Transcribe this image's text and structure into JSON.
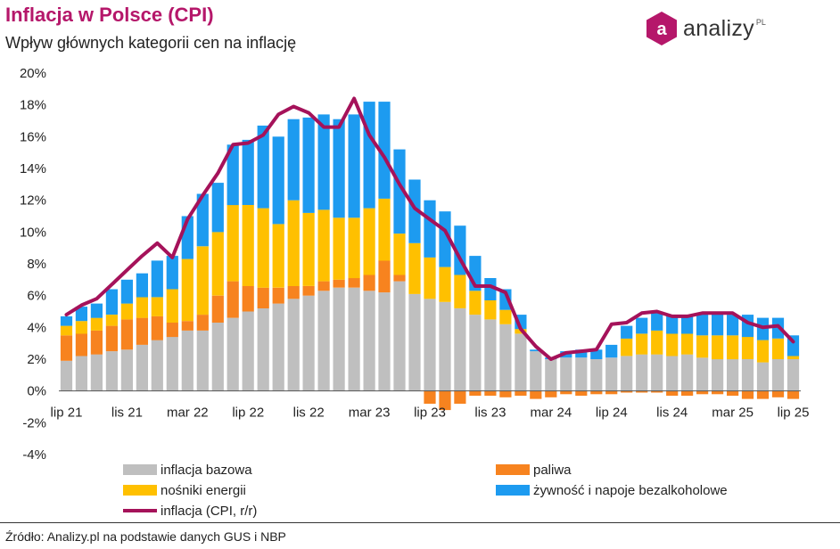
{
  "header": {
    "title": "Inflacja w Polsce (CPI)",
    "subtitle": "Wpływ głównych kategorii cen na inflację"
  },
  "logo": {
    "brand": "analizy",
    "suffix": "PL",
    "badge_letter": "a",
    "color": "#b5176a"
  },
  "source": "Źródło: Analizy.pl na podstawie danych GUS i NBP",
  "colors": {
    "bazowa": "#bfbfbf",
    "paliwa": "#f7831f",
    "energia": "#ffc000",
    "zywnosc": "#1d9bf0",
    "cpi": "#a5125a"
  },
  "chart_data": {
    "type": "bar",
    "stacked": true,
    "ylim": [
      -4,
      20
    ],
    "yticks": [
      "-4%",
      "-2%",
      "0%",
      "2%",
      "4%",
      "6%",
      "8%",
      "10%",
      "12%",
      "14%",
      "16%",
      "18%",
      "20%"
    ],
    "xtick_labels": [
      {
        "index": 0,
        "label": "lip 21"
      },
      {
        "index": 4,
        "label": "lis 21"
      },
      {
        "index": 8,
        "label": "mar 22"
      },
      {
        "index": 12,
        "label": "lip 22"
      },
      {
        "index": 16,
        "label": "lis 22"
      },
      {
        "index": 20,
        "label": "mar 23"
      },
      {
        "index": 24,
        "label": "lip 23"
      },
      {
        "index": 28,
        "label": "lis 23"
      },
      {
        "index": 32,
        "label": "mar 24"
      },
      {
        "index": 36,
        "label": "lip 24"
      },
      {
        "index": 40,
        "label": "lis 24"
      },
      {
        "index": 44,
        "label": "mar 25"
      },
      {
        "index": 48,
        "label": "lip 25"
      }
    ],
    "categories": [
      "lip 21",
      "sie 21",
      "wrz 21",
      "paź 21",
      "lis 21",
      "gru 21",
      "sty 22",
      "lut 22",
      "mar 22",
      "kwi 22",
      "maj 22",
      "cze 22",
      "lip 22",
      "sie 22",
      "wrz 22",
      "paź 22",
      "lis 22",
      "gru 22",
      "sty 23",
      "lut 23",
      "mar 23",
      "kwi 23",
      "maj 23",
      "cze 23",
      "lip 23",
      "sie 23",
      "wrz 23",
      "paź 23",
      "lis 23",
      "gru 23",
      "sty 24",
      "lut 24",
      "mar 24",
      "kwi 24",
      "maj 24",
      "cze 24",
      "lip 24",
      "sie 24",
      "wrz 24",
      "paź 24",
      "lis 24",
      "gru 24",
      "sty 25",
      "lut 25",
      "mar 25",
      "kwi 25",
      "maj 25",
      "cze 25",
      "lip 25"
    ],
    "series": [
      {
        "name": "inflacja bazowa",
        "key": "bazowa",
        "values": [
          1.9,
          2.2,
          2.3,
          2.5,
          2.6,
          2.9,
          3.2,
          3.4,
          3.8,
          3.8,
          4.3,
          4.6,
          5.0,
          5.2,
          5.5,
          5.8,
          6.0,
          6.3,
          6.5,
          6.5,
          6.3,
          6.2,
          6.9,
          6.1,
          5.8,
          5.6,
          5.2,
          4.8,
          4.5,
          4.2,
          3.6,
          2.5,
          2.0,
          2.1,
          2.1,
          2.0,
          2.1,
          2.2,
          2.3,
          2.3,
          2.2,
          2.3,
          2.1,
          2.0,
          2.0,
          2.0,
          1.8,
          2.0,
          2.0
        ]
      },
      {
        "name": "paliwa",
        "key": "paliwa",
        "values": [
          1.6,
          1.4,
          1.5,
          1.6,
          1.9,
          1.7,
          1.5,
          0.9,
          0.6,
          1.0,
          1.7,
          2.3,
          1.6,
          1.3,
          1.0,
          0.8,
          0.6,
          0.6,
          0.5,
          0.6,
          1.0,
          2.0,
          0.4,
          0.0,
          -0.8,
          -1.2,
          -0.8,
          -0.3,
          -0.3,
          -0.4,
          -0.3,
          -0.5,
          -0.4,
          -0.2,
          -0.3,
          -0.2,
          -0.2,
          -0.1,
          -0.1,
          -0.1,
          -0.3,
          -0.3,
          -0.2,
          -0.2,
          -0.3,
          -0.5,
          -0.5,
          -0.4,
          -0.5
        ]
      },
      {
        "name": "nośniki energii",
        "key": "energia",
        "values": [
          0.6,
          0.8,
          0.8,
          0.7,
          1.0,
          1.3,
          1.2,
          2.1,
          3.9,
          4.3,
          4.0,
          4.8,
          5.1,
          5.0,
          4.0,
          5.4,
          4.6,
          4.5,
          3.9,
          3.8,
          4.2,
          3.9,
          2.6,
          3.2,
          2.6,
          2.2,
          2.1,
          1.5,
          1.2,
          0.9,
          0.3,
          0.0,
          0.0,
          0.0,
          0.0,
          0.0,
          0.0,
          1.1,
          1.3,
          1.5,
          1.4,
          1.3,
          1.4,
          1.5,
          1.5,
          1.4,
          1.4,
          1.3,
          0.2
        ]
      },
      {
        "name": "żywność i napoje bezalkoholowe",
        "key": "zywnosc",
        "values": [
          0.6,
          0.9,
          0.9,
          1.6,
          1.5,
          1.5,
          2.3,
          2.1,
          2.7,
          3.3,
          3.1,
          3.8,
          4.1,
          5.2,
          5.5,
          5.1,
          6.0,
          6.0,
          6.2,
          6.5,
          6.7,
          6.1,
          5.3,
          4.0,
          3.6,
          3.5,
          3.1,
          2.2,
          1.4,
          1.3,
          0.9,
          0.1,
          0.1,
          0.4,
          0.5,
          0.6,
          0.8,
          0.8,
          1.0,
          1.2,
          1.2,
          1.2,
          1.4,
          1.4,
          1.3,
          1.4,
          1.4,
          1.3,
          1.3
        ]
      },
      {
        "name": "inflacja (CPI, r/r)",
        "key": "cpi",
        "type": "line",
        "values": [
          4.8,
          5.4,
          5.8,
          6.7,
          7.6,
          8.5,
          9.3,
          8.4,
          10.8,
          12.3,
          13.7,
          15.5,
          15.6,
          16.1,
          17.4,
          17.9,
          17.5,
          16.6,
          16.6,
          18.4,
          16.1,
          14.7,
          13.0,
          11.5,
          10.8,
          10.1,
          8.3,
          6.6,
          6.6,
          6.2,
          3.9,
          2.8,
          2.0,
          2.4,
          2.5,
          2.6,
          4.2,
          4.3,
          4.9,
          5.0,
          4.7,
          4.7,
          4.9,
          4.9,
          4.9,
          4.3,
          4.0,
          4.1,
          3.1
        ]
      }
    ],
    "legend": [
      {
        "key": "bazowa",
        "label": "inflacja bazowa",
        "marker": "box"
      },
      {
        "key": "paliwa",
        "label": "paliwa",
        "marker": "box"
      },
      {
        "key": "energia",
        "label": "nośniki energii",
        "marker": "box"
      },
      {
        "key": "zywnosc",
        "label": "żywność i napoje bezalkoholowe",
        "marker": "box"
      },
      {
        "key": "cpi",
        "label": "inflacja (CPI, r/r)",
        "marker": "line"
      }
    ],
    "legend_position": "bottom",
    "grid": false
  }
}
